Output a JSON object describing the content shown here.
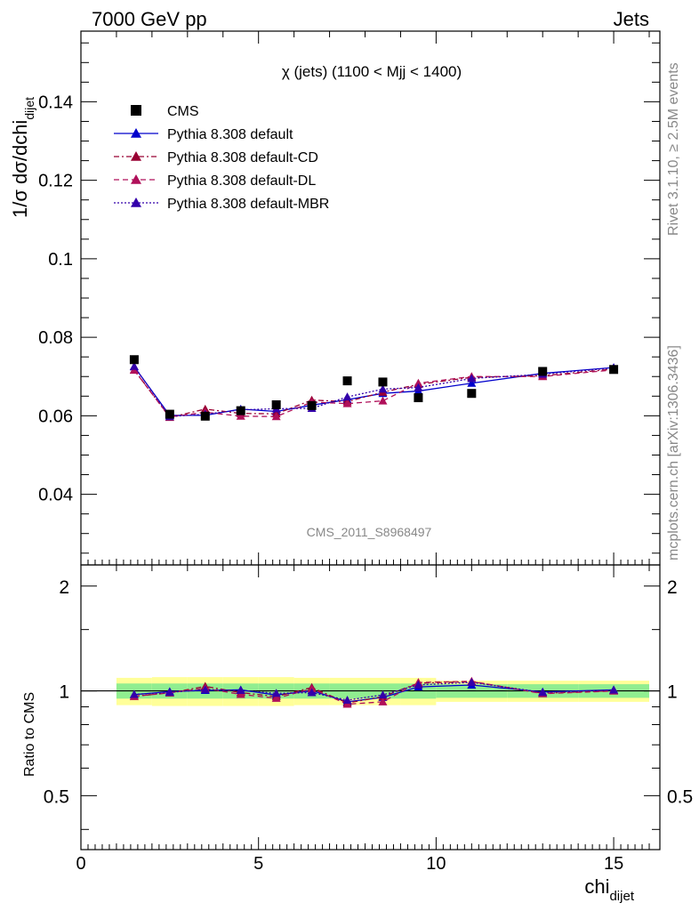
{
  "header": {
    "left": "7000 GeV pp",
    "right": "Jets"
  },
  "side_labels": {
    "rivet": "Rivet 3.1.10, ≥ 2.5M events",
    "mcplots": "mcplots.cern.ch [arXiv:1306.3436]"
  },
  "chart_data": {
    "type": "scatter",
    "title": "χ (jets) (1100 < Mjj < 1400)",
    "watermark": "CMS_2011_S8968497",
    "xlabel": "chi",
    "xlabel_sub": "dijet",
    "ylabel": "1/σ dσ/dchi",
    "ylabel_sub": "dijet",
    "ratio_ylabel": "Ratio to CMS",
    "xlim": [
      0,
      16.3
    ],
    "ylim": [
      0.022,
      0.158
    ],
    "ratio_ylim": [
      0.35,
      2.3
    ],
    "x_ticks": [
      0,
      5,
      10,
      15
    ],
    "y_ticks": [
      0.04,
      0.06,
      0.08,
      0.1,
      0.12,
      0.14
    ],
    "y_tick_labels": [
      "0.04",
      "0.06",
      "0.08",
      "0.1",
      "0.12",
      "0.14"
    ],
    "ratio_ticks": [
      0.5,
      1,
      2
    ],
    "ratio_tick_labels": [
      "0.5",
      "1",
      "2"
    ],
    "legend_position": "top-left",
    "bin_edges": [
      1,
      2,
      3,
      4,
      5,
      6,
      7,
      8,
      9,
      10,
      12,
      14,
      16
    ],
    "x": [
      1.5,
      2.5,
      3.5,
      4.5,
      5.5,
      6.5,
      7.5,
      8.5,
      9.5,
      11,
      13,
      15
    ],
    "data": {
      "name": "CMS",
      "color": "#000000",
      "values": [
        0.0743,
        0.0604,
        0.0599,
        0.0613,
        0.0628,
        0.0626,
        0.0689,
        0.0686,
        0.0646,
        0.0657,
        0.0713,
        0.0718
      ]
    },
    "uncertainty_bands": {
      "inner_color": "#90ee90",
      "outer_color": "#ffff99",
      "inner": [
        0.05,
        0.05,
        0.05,
        0.05,
        0.05,
        0.05,
        0.05,
        0.05,
        0.05,
        0.045,
        0.045,
        0.045
      ],
      "outer": [
        0.09,
        0.095,
        0.095,
        0.095,
        0.095,
        0.09,
        0.09,
        0.09,
        0.09,
        0.07,
        0.07,
        0.07
      ]
    },
    "series": [
      {
        "name": "Pythia 8.308 default",
        "color": "#0000cc",
        "dash": "",
        "values": [
          0.0725,
          0.0601,
          0.0601,
          0.0617,
          0.0611,
          0.0627,
          0.0641,
          0.0657,
          0.0663,
          0.0683,
          0.0708,
          0.0723
        ]
      },
      {
        "name": "Pythia 8.308 default-CD",
        "color": "#990033",
        "dash": "6,3,2,3",
        "values": [
          0.0717,
          0.0596,
          0.0617,
          0.0606,
          0.0605,
          0.064,
          0.0636,
          0.066,
          0.068,
          0.0698,
          0.0702,
          0.0719
        ]
      },
      {
        "name": "Pythia 8.308 default-DL",
        "color": "#b0105a",
        "dash": "6,4",
        "values": [
          0.0716,
          0.0597,
          0.0609,
          0.0599,
          0.0598,
          0.0635,
          0.0631,
          0.0638,
          0.0683,
          0.07,
          0.07,
          0.0717
        ]
      },
      {
        "name": "Pythia 8.308 default-MBR",
        "color": "#3300aa",
        "dash": "2,2",
        "values": [
          0.0726,
          0.0598,
          0.0604,
          0.0615,
          0.0618,
          0.0619,
          0.0648,
          0.0668,
          0.0672,
          0.0695,
          0.0706,
          0.0722
        ]
      }
    ]
  }
}
